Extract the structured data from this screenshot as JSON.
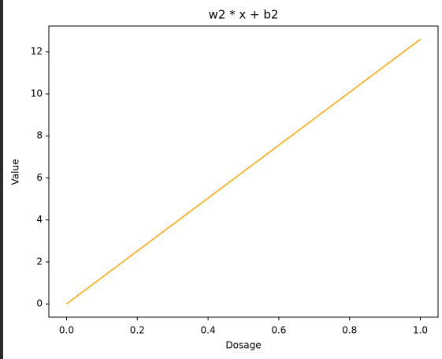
{
  "chart_data": {
    "type": "line",
    "title": "w2 * x + b2",
    "xlabel": "Dosage",
    "ylabel": "Value",
    "x": [
      0,
      1
    ],
    "series": [
      {
        "color": "#ffa500",
        "values": [
          0,
          12.6
        ]
      }
    ],
    "xlim": [
      -0.05,
      1.05
    ],
    "xticks": [
      {
        "value": 0,
        "label": "0.0"
      },
      {
        "value": 0.2,
        "label": "0.2"
      },
      {
        "value": 0.4,
        "label": "0.4"
      },
      {
        "value": 0.6,
        "label": "0.6"
      },
      {
        "value": 0.8,
        "label": "0.8"
      },
      {
        "value": 1,
        "label": "1.0"
      }
    ],
    "ylim": [
      -0.63,
      13.23
    ],
    "yticks": [
      0,
      2,
      4,
      6,
      8,
      10,
      12
    ],
    "grid": false
  }
}
